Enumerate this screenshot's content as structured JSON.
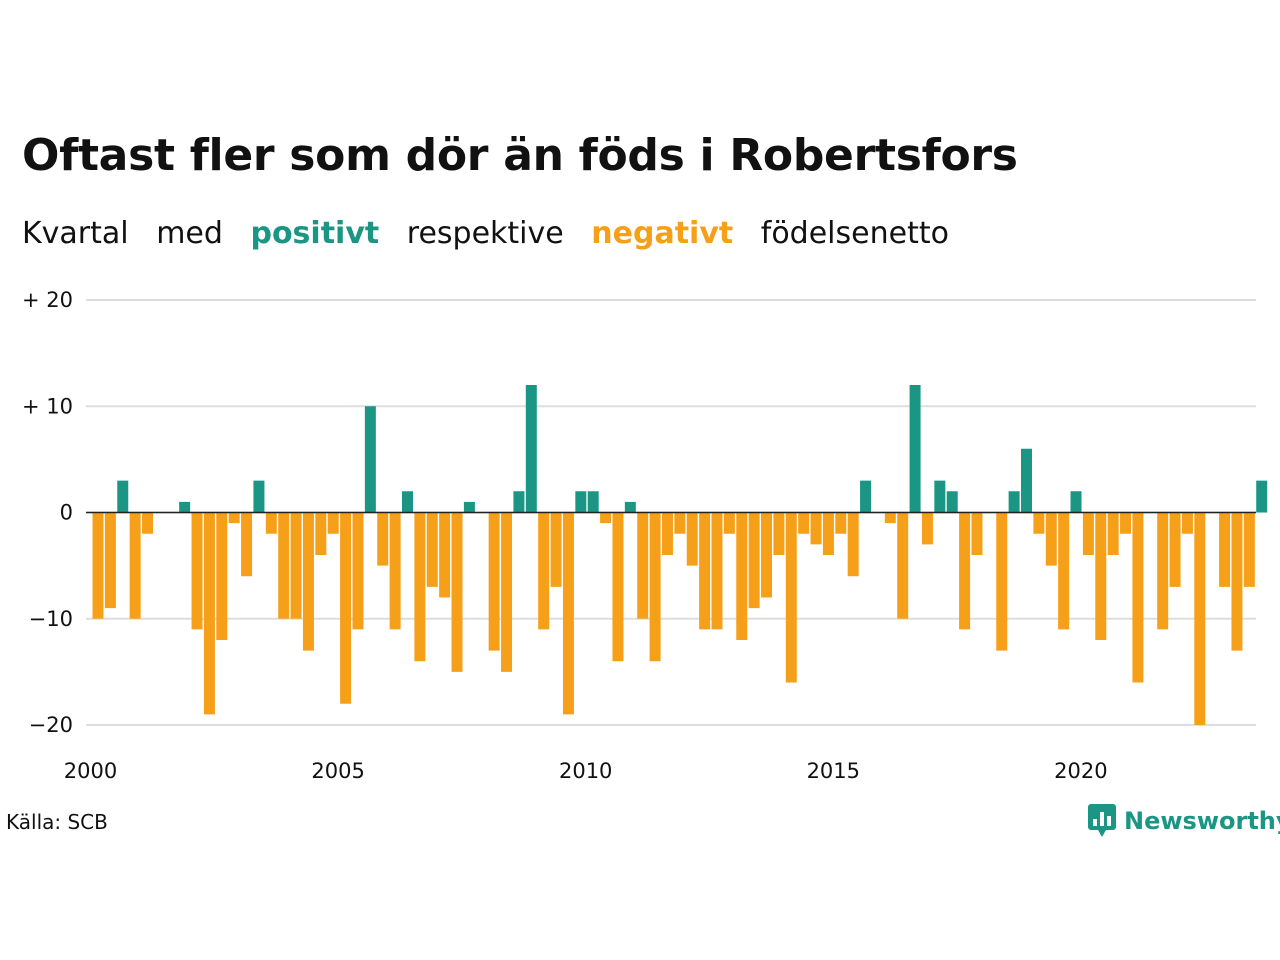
{
  "title": "Oftast fler som dör än föds i Robertsfors",
  "subtitle": {
    "part1": "Kvartal",
    "part2": "med",
    "positive": "positivt",
    "part3": "respektive",
    "negative": "negativt",
    "part4": "födelsenetto"
  },
  "colors": {
    "positive": "#1b9685",
    "negative": "#f6a01a",
    "grid": "#dddddd",
    "axis": "#222222"
  },
  "source": "Källa: SCB",
  "brand": "Newsworthy",
  "chart_data": {
    "type": "bar",
    "ylim": [
      -20,
      20
    ],
    "yticks": [
      {
        "value": 20,
        "label": "+ 20"
      },
      {
        "value": 10,
        "label": "+ 10"
      },
      {
        "value": 0,
        "label": "0"
      },
      {
        "value": -10,
        "label": "−10"
      },
      {
        "value": -20,
        "label": "−20"
      }
    ],
    "xticks": [
      "2000",
      "2005",
      "2010",
      "2015",
      "2020"
    ],
    "start_year": 2000,
    "grid": true,
    "values": [
      -10,
      -9,
      3,
      -10,
      -2,
      0,
      0,
      1,
      -11,
      -19,
      -12,
      -1,
      -6,
      3,
      -2,
      -10,
      -10,
      -13,
      -4,
      -2,
      -18,
      -11,
      10,
      -5,
      -11,
      2,
      -14,
      -7,
      -8,
      -15,
      1,
      0,
      -13,
      -15,
      2,
      12,
      -11,
      -7,
      -19,
      2,
      2,
      -1,
      -14,
      1,
      -10,
      -14,
      -4,
      -2,
      -5,
      -11,
      -11,
      -2,
      -12,
      -9,
      -8,
      -4,
      -16,
      -2,
      -3,
      -4,
      -2,
      -6,
      3,
      0,
      -1,
      -10,
      12,
      -3,
      3,
      2,
      -11,
      -4,
      0,
      -13,
      2,
      6,
      -2,
      -5,
      -11,
      2,
      -4,
      -12,
      -4,
      -2,
      -16,
      0,
      -11,
      -7,
      -2,
      -20,
      0,
      -7,
      -13,
      -7,
      3
    ]
  }
}
